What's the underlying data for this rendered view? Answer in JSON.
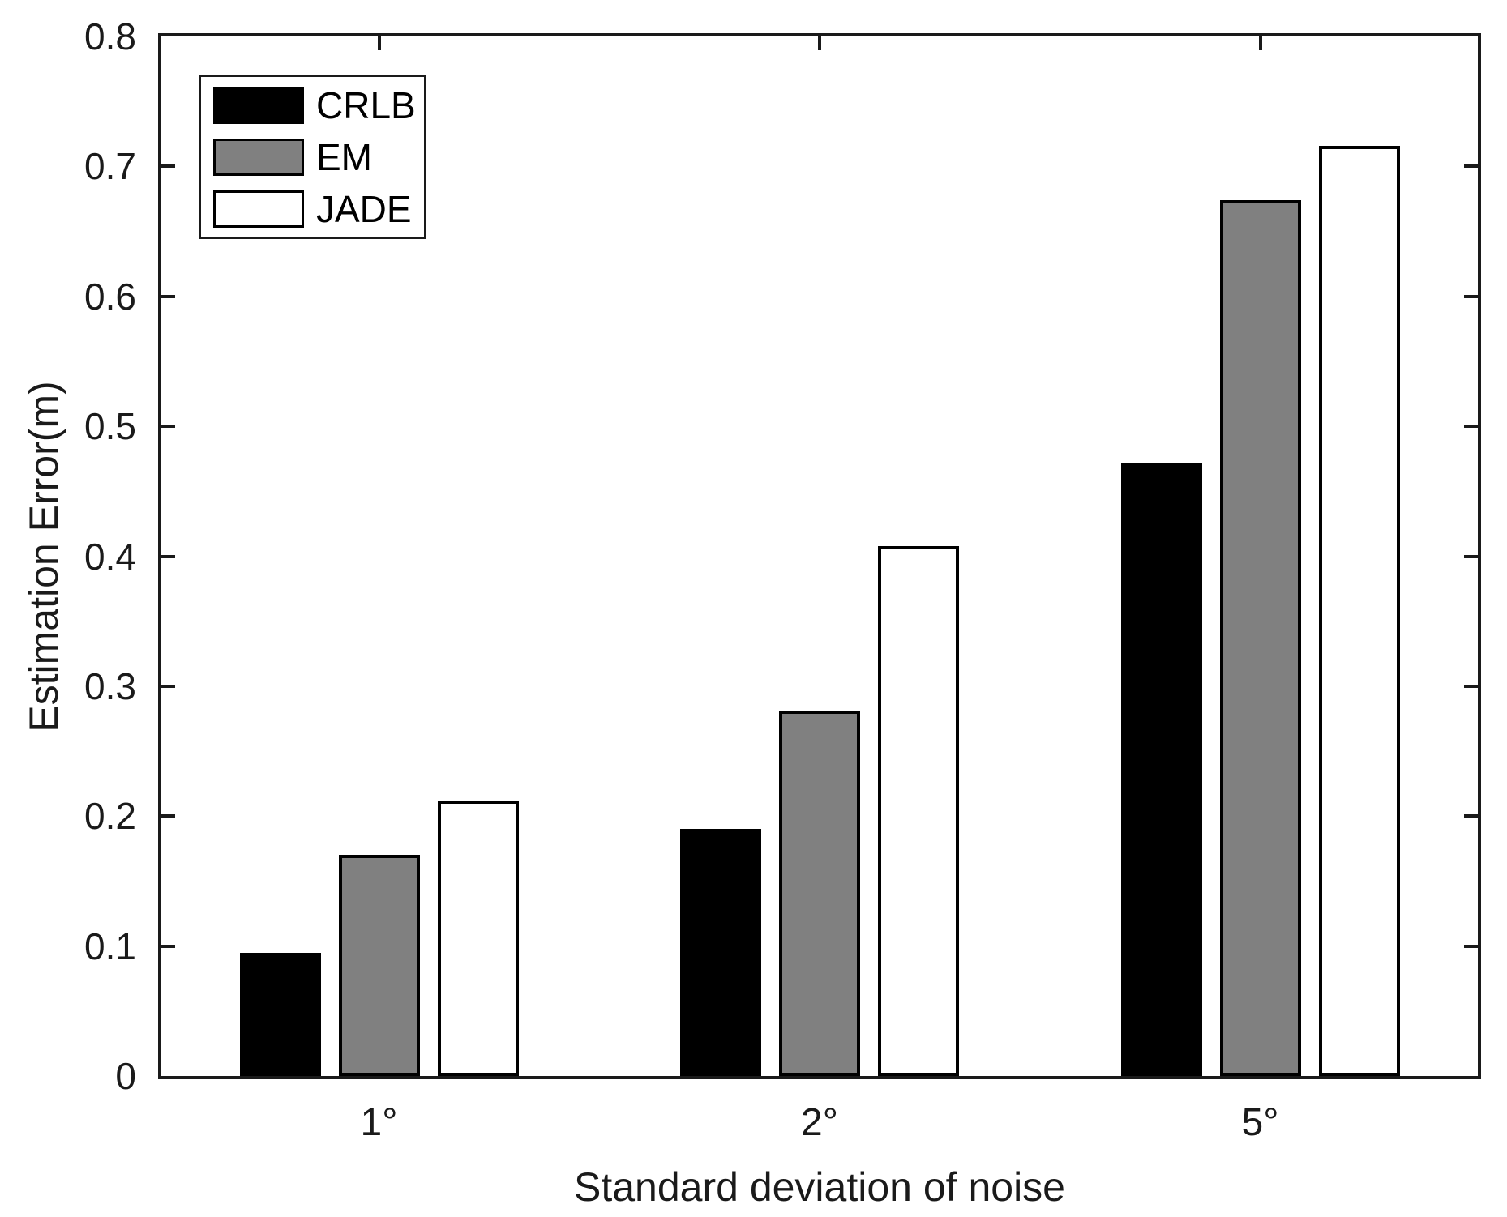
{
  "chart_data": {
    "type": "bar",
    "title": "",
    "xlabel": "Standard deviation of noise",
    "ylabel": "Estimation Error(m)",
    "categories": [
      "1°",
      "2°",
      "5°"
    ],
    "series": [
      {
        "name": "CRLB",
        "color": "#000000",
        "values": [
          0.095,
          0.19,
          0.472
        ]
      },
      {
        "name": "EM",
        "color": "#808080",
        "values": [
          0.17,
          0.281,
          0.674
        ]
      },
      {
        "name": "JADE",
        "color": "#ffffff",
        "values": [
          0.212,
          0.408,
          0.716
        ]
      }
    ],
    "ylim": [
      0,
      0.8
    ],
    "ytick_step": 0.1,
    "ytick_labels": [
      "0",
      "0.1",
      "0.2",
      "0.3",
      "0.4",
      "0.5",
      "0.6",
      "0.7",
      "0.8"
    ],
    "legend_position": "top-left",
    "grid": false,
    "bar_edge_color": "#000000",
    "axis_color": "#1a1a1a",
    "background_color": "#ffffff"
  }
}
